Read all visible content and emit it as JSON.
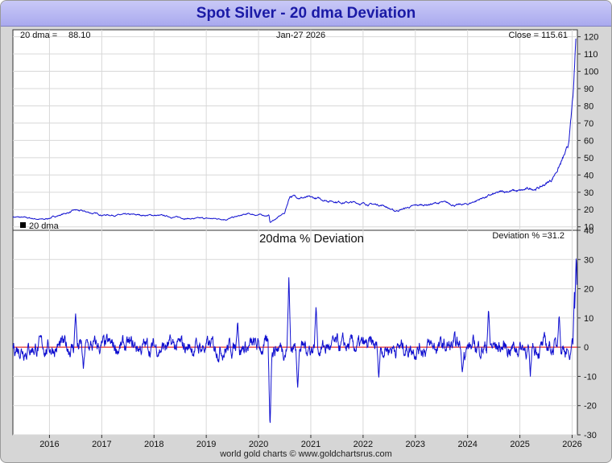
{
  "title": "Spot Silver - 20 dma Deviation",
  "footer": "world gold charts © www.goldchartsrus.com",
  "colors": {
    "price": "#1010d0",
    "deviation": "#1010d0",
    "zero_line": "#e00000",
    "grid": "#d8d8d8",
    "title": "#1a1aa6"
  },
  "chart_data": [
    {
      "type": "line",
      "header": {
        "dma_label": "20 dma =",
        "dma_value": "88.10",
        "date": "Jan-27  2026",
        "close": "Close = 115.61"
      },
      "legend": [
        {
          "marker": "square",
          "label": "20 dma"
        }
      ],
      "series": [
        {
          "values_at_anchors": [
            [
              2015.3,
              15.8
            ],
            [
              2015.9,
              14.2
            ],
            [
              2016.5,
              19.5
            ],
            [
              2017.0,
              17.0
            ],
            [
              2017.5,
              16.8
            ],
            [
              2018.0,
              16.7
            ],
            [
              2018.7,
              14.8
            ],
            [
              2019.4,
              14.6
            ],
            [
              2019.8,
              17.3
            ],
            [
              2020.2,
              16.5
            ],
            [
              2020.22,
              12.5
            ],
            [
              2020.5,
              18.0
            ],
            [
              2020.6,
              28.0
            ],
            [
              2021.0,
              26.5
            ],
            [
              2021.3,
              25.5
            ],
            [
              2021.6,
              24.5
            ],
            [
              2022.0,
              23.5
            ],
            [
              2022.4,
              22.5
            ],
            [
              2022.6,
              19.0
            ],
            [
              2022.9,
              21.5
            ],
            [
              2023.1,
              22.5
            ],
            [
              2023.5,
              24.0
            ],
            [
              2023.8,
              22.5
            ],
            [
              2024.0,
              23.0
            ],
            [
              2024.3,
              27.0
            ],
            [
              2024.8,
              31.0
            ],
            [
              2025.0,
              30.5
            ],
            [
              2025.4,
              33.0
            ],
            [
              2025.6,
              37.0
            ],
            [
              2025.8,
              48.0
            ],
            [
              2025.92,
              55.0
            ],
            [
              2025.98,
              72.0
            ],
            [
              2026.03,
              90.0
            ],
            [
              2026.07,
              115.61
            ]
          ]
        }
      ],
      "x_range": [
        2015.3,
        2026.1
      ],
      "y_range": [
        8,
        124
      ],
      "y_ticks": [
        10,
        20,
        30,
        40,
        50,
        60,
        70,
        80,
        90,
        100,
        110,
        120
      ]
    },
    {
      "type": "line",
      "title": "20dma  %  Deviation",
      "header": {
        "deviation": "Deviation % =31.2"
      },
      "series": [
        {
          "spikes": [
            [
              2016.5,
              12
            ],
            [
              2016.65,
              -8
            ],
            [
              2019.6,
              10
            ],
            [
              2020.22,
              -28
            ],
            [
              2020.58,
              24
            ],
            [
              2020.75,
              -13
            ],
            [
              2021.1,
              14
            ],
            [
              2022.3,
              -10
            ],
            [
              2023.9,
              -9
            ],
            [
              2024.4,
              13
            ],
            [
              2025.2,
              -11
            ],
            [
              2025.75,
              13
            ],
            [
              2025.95,
              -6
            ],
            [
              2026.05,
              24
            ],
            [
              2026.08,
              31.2
            ]
          ]
        }
      ],
      "x_range": [
        2015.3,
        2026.1
      ],
      "y_range": [
        -30,
        40
      ],
      "y_ticks": [
        -30,
        -20,
        -10,
        0,
        10,
        20,
        30,
        40
      ],
      "x_ticks": [
        "2016",
        "2017",
        "2018",
        "2019",
        "2020",
        "2021",
        "2022",
        "2023",
        "2024",
        "2025",
        "2026"
      ]
    }
  ]
}
